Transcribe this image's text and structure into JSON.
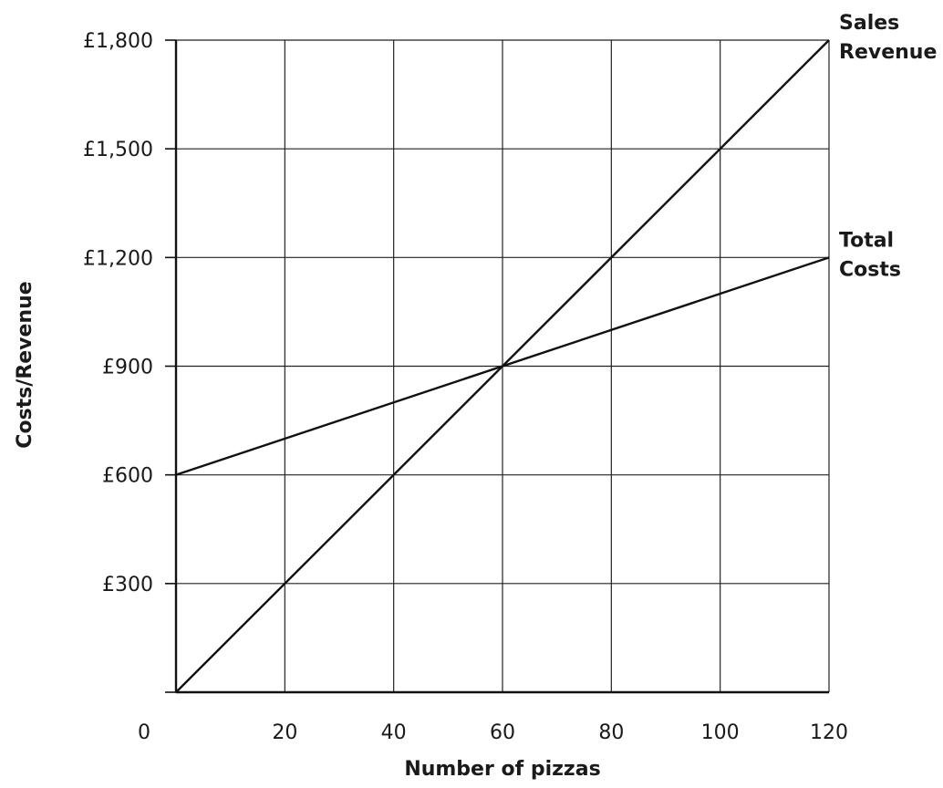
{
  "chart_data": {
    "type": "line",
    "xlabel": "Number of pizzas",
    "ylabel": "Costs/Revenue",
    "xlim": [
      0,
      120
    ],
    "ylim": [
      0,
      1800
    ],
    "x_ticks": [
      0,
      20,
      40,
      60,
      80,
      100,
      120
    ],
    "x_tick_labels": [
      "0",
      "20",
      "40",
      "60",
      "80",
      "100",
      "120"
    ],
    "y_ticks": [
      300,
      600,
      900,
      1200,
      1500,
      1800
    ],
    "y_tick_labels": [
      "£300",
      "£600",
      "£900",
      "£1,200",
      "£1,500",
      "£1,800"
    ],
    "grid": true,
    "series": [
      {
        "name": "Sales Revenue",
        "label_lines": [
          "Sales",
          "Revenue"
        ],
        "x": [
          0,
          120
        ],
        "y": [
          0,
          1800
        ]
      },
      {
        "name": "Total Costs",
        "label_lines": [
          "Total",
          "Costs"
        ],
        "x": [
          0,
          120
        ],
        "y": [
          600,
          1200
        ]
      }
    ]
  }
}
